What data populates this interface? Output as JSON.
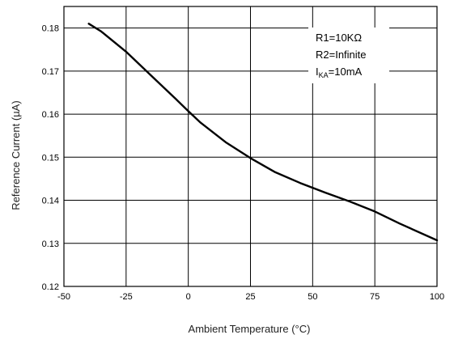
{
  "chart_data": {
    "type": "line",
    "title": "",
    "xlabel": "Ambient Temperature (°C)",
    "ylabel": "Reference Current (µA)",
    "xlim": [
      -50,
      100
    ],
    "ylim": [
      0.12,
      0.185
    ],
    "x_ticks": [
      -50,
      -25,
      0,
      25,
      50,
      75,
      100
    ],
    "x_tick_labels": [
      "-50",
      "-25",
      "0",
      "25",
      "50",
      "75",
      "100"
    ],
    "y_ticks": [
      0.12,
      0.13,
      0.14,
      0.15,
      0.16,
      0.17,
      0.18
    ],
    "y_tick_labels": [
      "0.12",
      "0.13",
      "0.14",
      "0.15",
      "0.16",
      "0.17",
      "0.18"
    ],
    "grid": true,
    "legend_placement": "top-right",
    "annotation": {
      "line1": "R1=10KΩ",
      "line2": "R2=Infinite",
      "line3_prefix": "I",
      "line3_sub": "KA",
      "line3_suffix": "=10mA"
    },
    "series": [
      {
        "color": "#000000",
        "x": [
          -40,
          -35,
          -25,
          -15,
          -5,
          0,
          5,
          15,
          25,
          35,
          45,
          55,
          65,
          75,
          85,
          100
        ],
        "y": [
          0.181,
          0.1792,
          0.1745,
          0.169,
          0.1635,
          0.1607,
          0.158,
          0.1535,
          0.1498,
          0.1465,
          0.144,
          0.1418,
          0.1397,
          0.1374,
          0.1346,
          0.1307
        ]
      }
    ]
  }
}
